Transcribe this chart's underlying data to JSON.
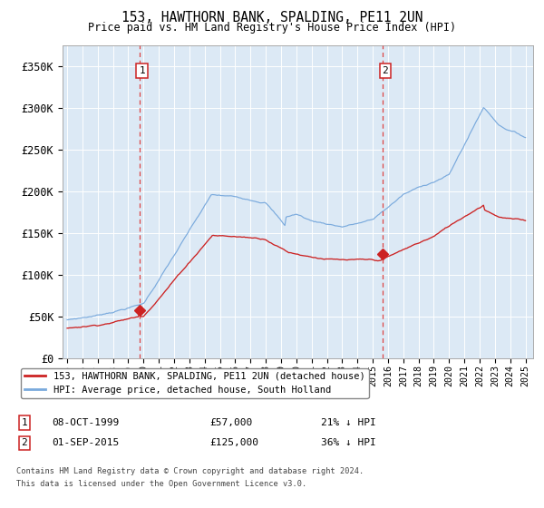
{
  "title": "153, HAWTHORN BANK, SPALDING, PE11 2UN",
  "subtitle": "Price paid vs. HM Land Registry's House Price Index (HPI)",
  "sale1_date_label": "08-OCT-1999",
  "sale1_price_label": "£57,000",
  "sale1_pct": "21% ↓ HPI",
  "sale2_date_label": "01-SEP-2015",
  "sale2_price_label": "£125,000",
  "sale2_pct": "36% ↓ HPI",
  "legend1": "153, HAWTHORN BANK, SPALDING, PE11 2UN (detached house)",
  "legend2": "HPI: Average price, detached house, South Holland",
  "footer1": "Contains HM Land Registry data © Crown copyright and database right 2024.",
  "footer2": "This data is licensed under the Open Government Licence v3.0.",
  "ylabel_ticks": [
    "£0",
    "£50K",
    "£100K",
    "£150K",
    "£200K",
    "£250K",
    "£300K",
    "£350K"
  ],
  "ytick_vals": [
    0,
    50000,
    100000,
    150000,
    200000,
    250000,
    300000,
    350000
  ],
  "ylim": [
    0,
    375000
  ],
  "xlim_left": 1994.7,
  "xlim_right": 2025.5,
  "bg_color": "#dce9f5",
  "fig_bg": "#ffffff",
  "hpi_color": "#7aaadd",
  "price_color": "#cc2222",
  "marker_color": "#cc2222",
  "vline_color": "#dd4444",
  "box_edge_color": "#cc2222",
  "grid_color": "#ffffff",
  "sale1_t": 1999.75,
  "sale2_t": 2015.667,
  "sale1_price": 57000,
  "sale2_price": 125000
}
